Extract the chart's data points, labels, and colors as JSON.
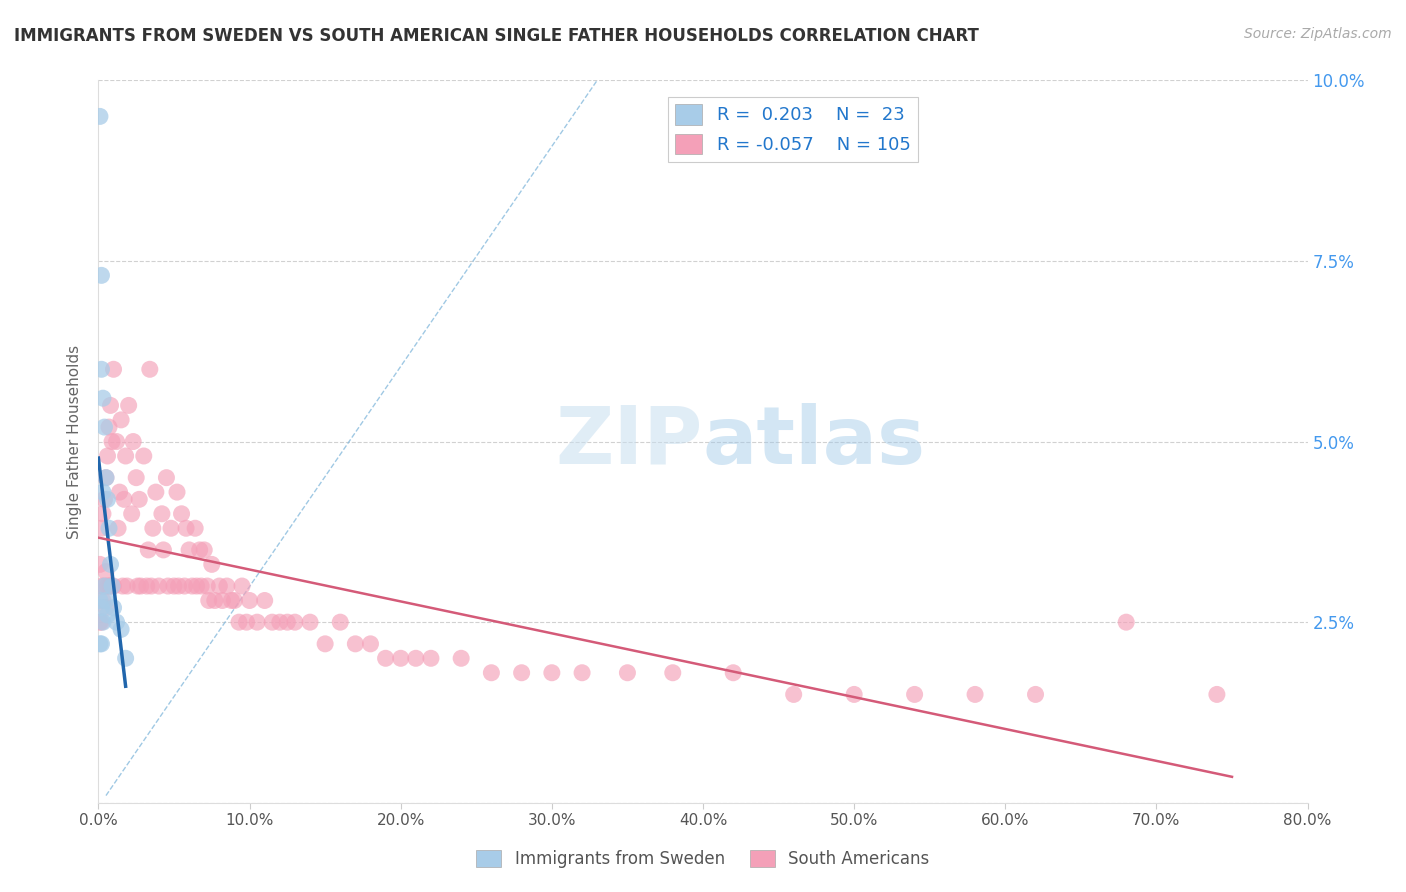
{
  "title": "IMMIGRANTS FROM SWEDEN VS SOUTH AMERICAN SINGLE FATHER HOUSEHOLDS CORRELATION CHART",
  "source": "Source: ZipAtlas.com",
  "ylabel": "Single Father Households",
  "xlim": [
    0,
    0.8
  ],
  "ylim": [
    0,
    0.1
  ],
  "xticks": [
    0.0,
    0.1,
    0.2,
    0.3,
    0.4,
    0.5,
    0.6,
    0.7,
    0.8
  ],
  "yticks": [
    0.0,
    0.025,
    0.05,
    0.075,
    0.1
  ],
  "xticklabels": [
    "0.0%",
    "10.0%",
    "20.0%",
    "30.0%",
    "40.0%",
    "50.0%",
    "60.0%",
    "70.0%",
    "80.0%"
  ],
  "yticklabels_right": [
    "",
    "2.5%",
    "5.0%",
    "7.5%",
    "10.0%"
  ],
  "R_sweden": 0.203,
  "N_sweden": 23,
  "R_south": -0.057,
  "N_south": 105,
  "legend_label_1": "Immigrants from Sweden",
  "legend_label_2": "South Americans",
  "watermark_zip": "ZIP",
  "watermark_atlas": "atlas",
  "blue_color": "#a8cce8",
  "pink_color": "#f4a0b8",
  "blue_line_color": "#2166ac",
  "pink_line_color": "#d45a78",
  "diag_color": "#99bbdd",
  "sweden_points_x": [
    0.001,
    0.001,
    0.001,
    0.002,
    0.002,
    0.002,
    0.002,
    0.003,
    0.003,
    0.003,
    0.004,
    0.004,
    0.005,
    0.005,
    0.006,
    0.006,
    0.007,
    0.008,
    0.009,
    0.01,
    0.012,
    0.015,
    0.018
  ],
  "sweden_points_y": [
    0.095,
    0.028,
    0.022,
    0.073,
    0.06,
    0.027,
    0.022,
    0.056,
    0.043,
    0.025,
    0.052,
    0.03,
    0.045,
    0.028,
    0.042,
    0.026,
    0.038,
    0.033,
    0.03,
    0.027,
    0.025,
    0.024,
    0.02
  ],
  "south_points_x": [
    0.001,
    0.001,
    0.002,
    0.002,
    0.002,
    0.003,
    0.003,
    0.004,
    0.004,
    0.005,
    0.005,
    0.005,
    0.006,
    0.006,
    0.007,
    0.007,
    0.008,
    0.008,
    0.009,
    0.01,
    0.01,
    0.012,
    0.013,
    0.014,
    0.015,
    0.016,
    0.017,
    0.018,
    0.019,
    0.02,
    0.022,
    0.023,
    0.025,
    0.026,
    0.027,
    0.028,
    0.03,
    0.032,
    0.033,
    0.034,
    0.035,
    0.036,
    0.038,
    0.04,
    0.042,
    0.043,
    0.045,
    0.046,
    0.048,
    0.05,
    0.052,
    0.053,
    0.055,
    0.057,
    0.058,
    0.06,
    0.062,
    0.064,
    0.065,
    0.067,
    0.068,
    0.07,
    0.072,
    0.073,
    0.075,
    0.077,
    0.08,
    0.082,
    0.085,
    0.088,
    0.09,
    0.093,
    0.095,
    0.098,
    0.1,
    0.105,
    0.11,
    0.115,
    0.12,
    0.125,
    0.13,
    0.14,
    0.15,
    0.16,
    0.17,
    0.18,
    0.19,
    0.2,
    0.21,
    0.22,
    0.24,
    0.26,
    0.28,
    0.3,
    0.32,
    0.35,
    0.38,
    0.42,
    0.46,
    0.5,
    0.54,
    0.58,
    0.62,
    0.68,
    0.74
  ],
  "south_points_y": [
    0.033,
    0.025,
    0.038,
    0.03,
    0.025,
    0.04,
    0.028,
    0.042,
    0.03,
    0.045,
    0.032,
    0.027,
    0.048,
    0.03,
    0.052,
    0.03,
    0.055,
    0.03,
    0.05,
    0.06,
    0.03,
    0.05,
    0.038,
    0.043,
    0.053,
    0.03,
    0.042,
    0.048,
    0.03,
    0.055,
    0.04,
    0.05,
    0.045,
    0.03,
    0.042,
    0.03,
    0.048,
    0.03,
    0.035,
    0.06,
    0.03,
    0.038,
    0.043,
    0.03,
    0.04,
    0.035,
    0.045,
    0.03,
    0.038,
    0.03,
    0.043,
    0.03,
    0.04,
    0.03,
    0.038,
    0.035,
    0.03,
    0.038,
    0.03,
    0.035,
    0.03,
    0.035,
    0.03,
    0.028,
    0.033,
    0.028,
    0.03,
    0.028,
    0.03,
    0.028,
    0.028,
    0.025,
    0.03,
    0.025,
    0.028,
    0.025,
    0.028,
    0.025,
    0.025,
    0.025,
    0.025,
    0.025,
    0.022,
    0.025,
    0.022,
    0.022,
    0.02,
    0.02,
    0.02,
    0.02,
    0.02,
    0.018,
    0.018,
    0.018,
    0.018,
    0.018,
    0.018,
    0.018,
    0.015,
    0.015,
    0.015,
    0.015,
    0.015,
    0.025,
    0.015
  ],
  "bg_color": "#ffffff",
  "grid_color": "#cccccc",
  "title_color": "#333333",
  "right_tick_color": "#4499ee"
}
